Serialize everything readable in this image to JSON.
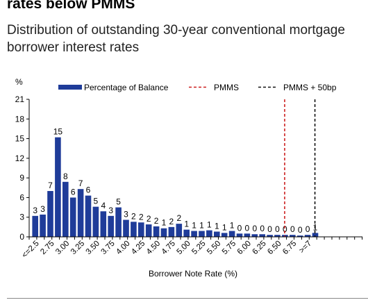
{
  "header": {
    "title": "rates below PMMS",
    "subtitle": "Distribution of outstanding 30-year conventional mortgage borrower interest rates"
  },
  "colors": {
    "bar": "#1f3c99",
    "pmms": "#cc1f1f",
    "pmms_plus": "#111111"
  },
  "chart_data": {
    "type": "bar",
    "xlabel": "Borrower Note Rate (%)",
    "ylabel": "%",
    "ylim": [
      0,
      21
    ],
    "yticks": [
      0,
      3,
      6,
      9,
      12,
      15,
      18,
      21
    ],
    "x_tick_labels": [
      "<=2.5",
      "2.75",
      "3.00",
      "3.25",
      "3.50",
      "3.75",
      "4.00",
      "4.25",
      "4.50",
      "4.75",
      "5.00",
      "5.25",
      "5.50",
      "5.75",
      "6.00",
      "6.25",
      "6.50",
      "6.75",
      ">=7"
    ],
    "legend": [
      "Percentage of Balance",
      "PMMS",
      "PMMS + 50bp"
    ],
    "legend_position": "top",
    "series": [
      {
        "name": "Percentage of Balance",
        "values": [
          3.2,
          3.4,
          7.0,
          15.2,
          8.4,
          6.0,
          7.3,
          6.3,
          4.6,
          3.9,
          3.2,
          4.5,
          2.6,
          2.3,
          2.2,
          1.9,
          1.6,
          1.3,
          1.5,
          2.0,
          1.1,
          0.9,
          0.9,
          1.0,
          0.8,
          0.6,
          0.9,
          0.5,
          0.5,
          0.4,
          0.4,
          0.3,
          0.3,
          0.3,
          0.3,
          0.2,
          0.3,
          0.6
        ],
        "data_labels": [
          "3",
          "3",
          "7",
          "15",
          "8",
          "6",
          "7",
          "6",
          "5",
          "4",
          "3",
          "5",
          "3",
          "2",
          "2",
          "2",
          "2",
          "1",
          "2",
          "2",
          "1",
          "1",
          "1",
          "1",
          "1",
          "1",
          "1",
          "0",
          "0",
          "0",
          "0",
          "0",
          "0",
          "0",
          "0",
          "0",
          "0",
          "1"
        ]
      }
    ],
    "reference_lines": [
      {
        "name": "PMMS",
        "x": 6.62,
        "style": "dashed"
      },
      {
        "name": "PMMS + 50bp",
        "x": 7.12,
        "style": "dashed"
      }
    ]
  }
}
